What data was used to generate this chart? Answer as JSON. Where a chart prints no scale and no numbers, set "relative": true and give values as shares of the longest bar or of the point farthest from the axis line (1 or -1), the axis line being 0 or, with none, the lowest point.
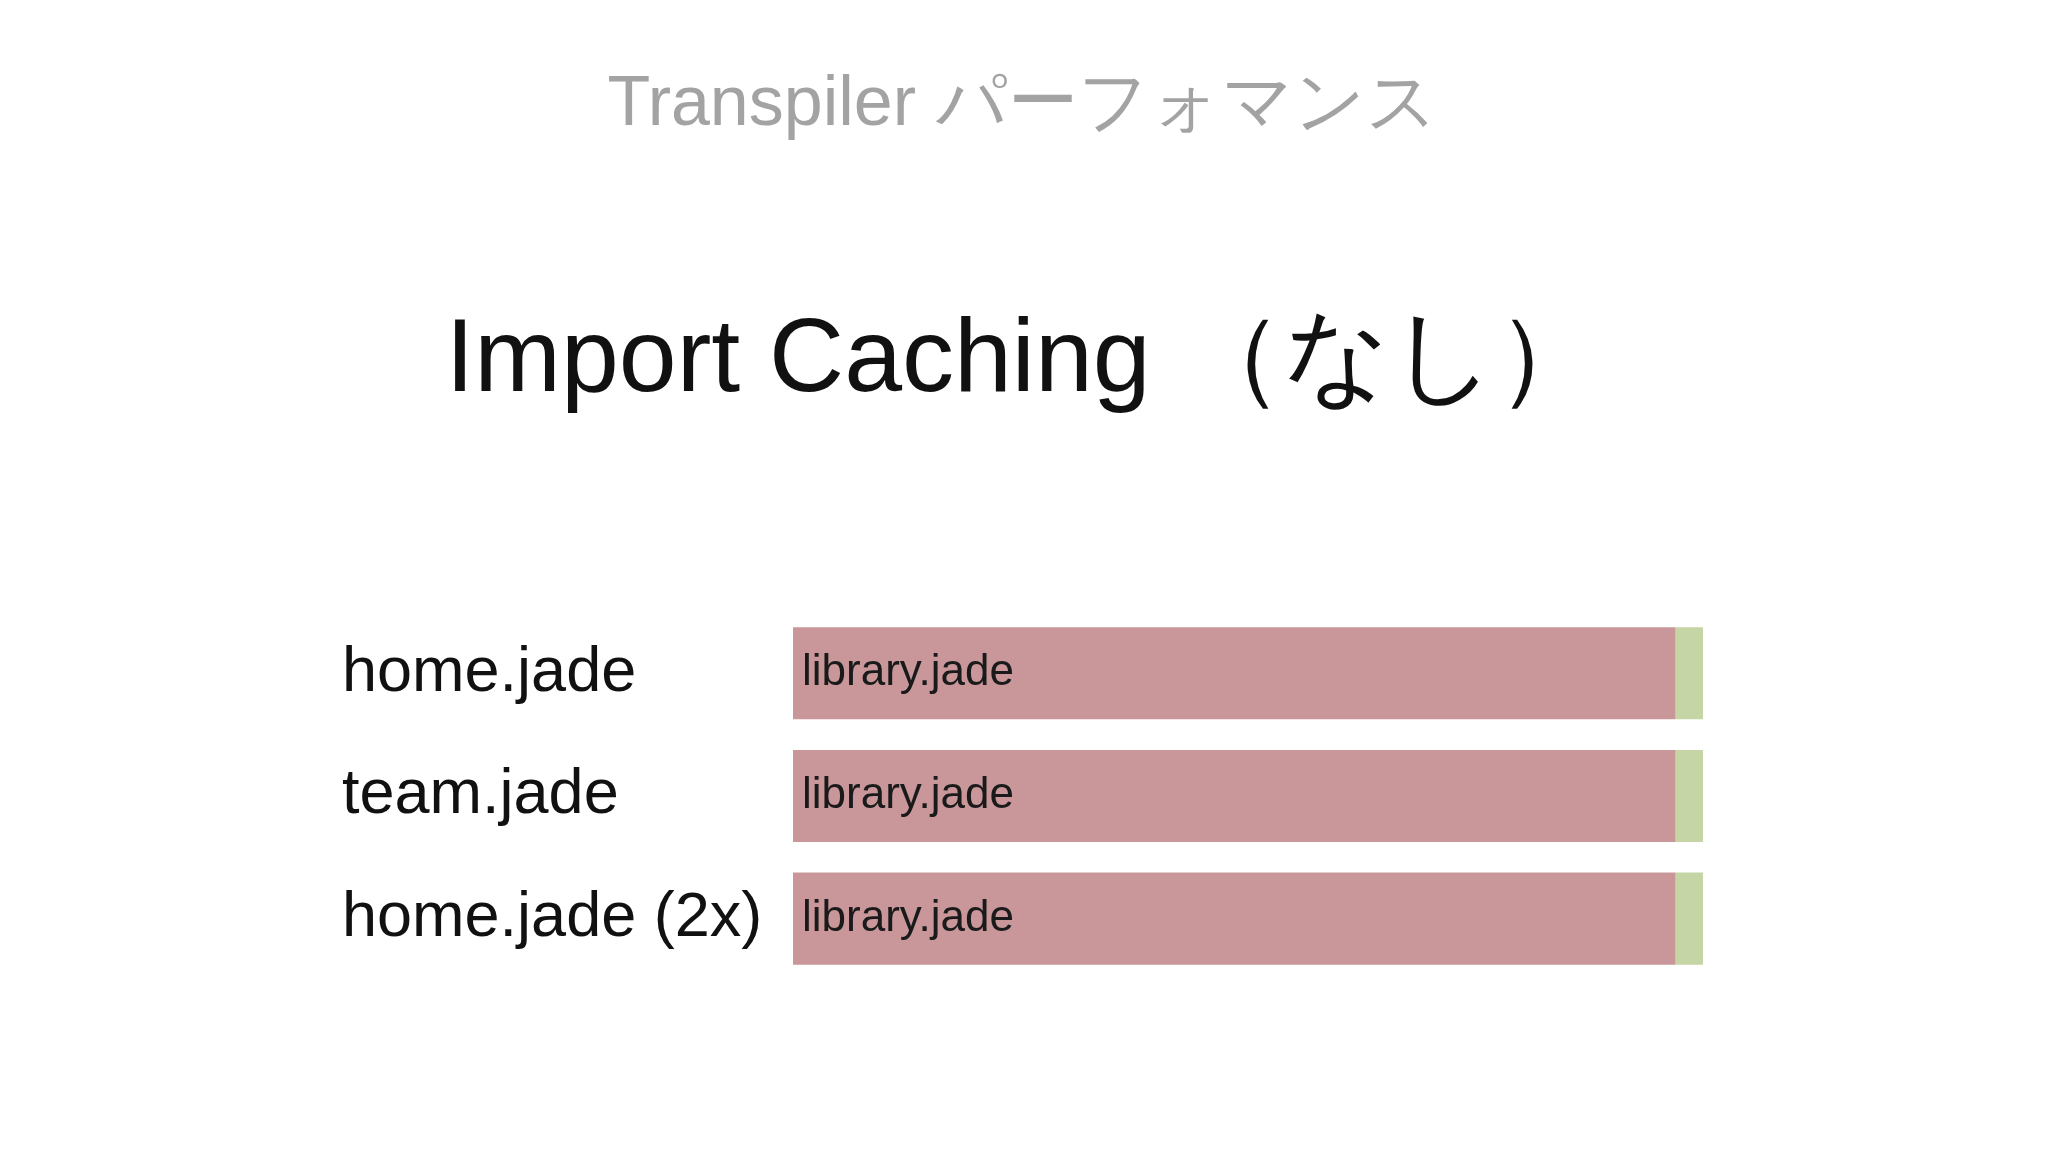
{
  "chart_data": {
    "type": "bar",
    "orientation": "horizontal",
    "stacked": true,
    "relative": true,
    "title": "Transpiler パーフォマンス",
    "subtitle": "Import Caching （なし）",
    "categories": [
      "home.jade",
      "team.jade",
      "home.jade (2x)"
    ],
    "series": [
      {
        "name": "library.jade",
        "color": "#c9979a",
        "values": [
          0.97,
          0.97,
          0.97
        ]
      },
      {
        "color": "#c5d5a5",
        "values": [
          0.03,
          0.03,
          0.03
        ]
      }
    ]
  }
}
